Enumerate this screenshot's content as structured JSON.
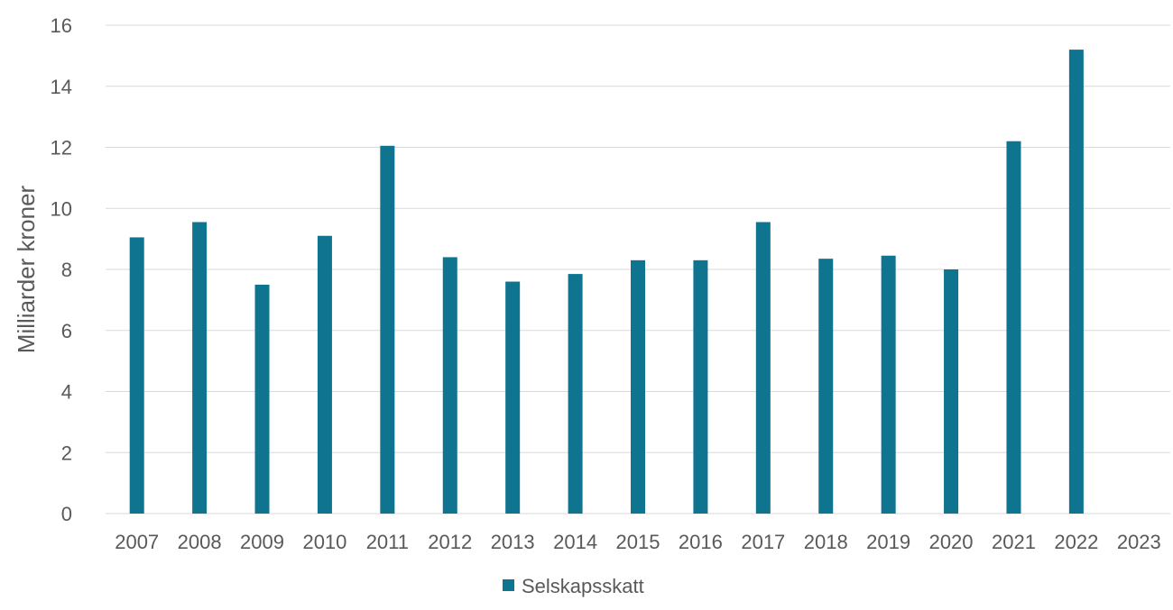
{
  "chart_data": {
    "type": "bar",
    "ylabel": "Milliarder kroner",
    "ylim": [
      0,
      16
    ],
    "yticks": [
      0,
      2,
      4,
      6,
      8,
      10,
      12,
      14,
      16
    ],
    "grid": true,
    "legend_position": "bottom",
    "categories": [
      "2007",
      "2008",
      "2009",
      "2010",
      "2011",
      "2012",
      "2013",
      "2014",
      "2015",
      "2016",
      "2017",
      "2018",
      "2019",
      "2020",
      "2021",
      "2022",
      "2023"
    ],
    "series": [
      {
        "name": "Selskapsskatt",
        "color": "#0e7490",
        "values": [
          9.05,
          9.55,
          7.5,
          9.1,
          12.05,
          8.4,
          7.6,
          7.85,
          8.3,
          8.3,
          9.55,
          8.35,
          8.45,
          8.0,
          12.2,
          15.2,
          null
        ]
      }
    ]
  }
}
